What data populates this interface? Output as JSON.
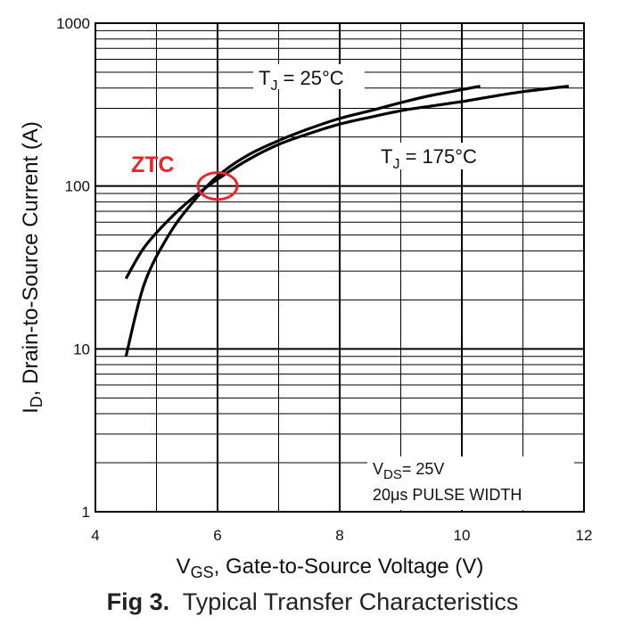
{
  "chart_data": {
    "type": "line",
    "xlabel": {
      "main": "V",
      "sub": "GS",
      "rest": ", Gate-to-Source Voltage (V)"
    },
    "ylabel": {
      "main": "I",
      "sub": "D",
      "rest": ",  Drain-to-Source Current (A)"
    },
    "xlim": [
      4,
      12
    ],
    "ylim": [
      1,
      1000
    ],
    "yscale": "log",
    "xticks": [
      "4",
      "6",
      "8",
      "10",
      "12"
    ],
    "yticks": [
      "1",
      "10",
      "100",
      "1000"
    ],
    "grid": true,
    "series": [
      {
        "name": {
          "main": "T",
          "sub": "J",
          "rest": " = 25°C"
        },
        "x": [
          4.5,
          4.8,
          5.2,
          5.6,
          6.0,
          6.5,
          7.0,
          7.5,
          8.0,
          8.5,
          9.0,
          9.5,
          10.3
        ],
        "y": [
          9,
          25,
          50,
          80,
          115,
          155,
          190,
          225,
          260,
          290,
          325,
          360,
          410
        ]
      },
      {
        "name": {
          "main": "T",
          "sub": "J",
          "rest": " = 175°C"
        },
        "x": [
          4.5,
          4.8,
          5.2,
          5.6,
          6.0,
          6.5,
          7.0,
          7.5,
          8.0,
          8.5,
          9.0,
          9.5,
          10.0,
          10.5,
          11.0,
          11.75
        ],
        "y": [
          27,
          42,
          62,
          85,
          110,
          145,
          180,
          210,
          240,
          265,
          290,
          310,
          330,
          355,
          380,
          410
        ]
      }
    ],
    "annotations": {
      "ztc": {
        "label": "ZTC",
        "color": "#e8262b",
        "x": 6.0,
        "y": 100
      },
      "conditions": {
        "vds_main": "V",
        "vds_sub": "DS",
        "vds_rest": "= 25V",
        "pulse": "20μs PULSE WIDTH"
      }
    }
  },
  "caption": {
    "fig": "Fig 3.",
    "text": "Typical Transfer Characteristics"
  }
}
